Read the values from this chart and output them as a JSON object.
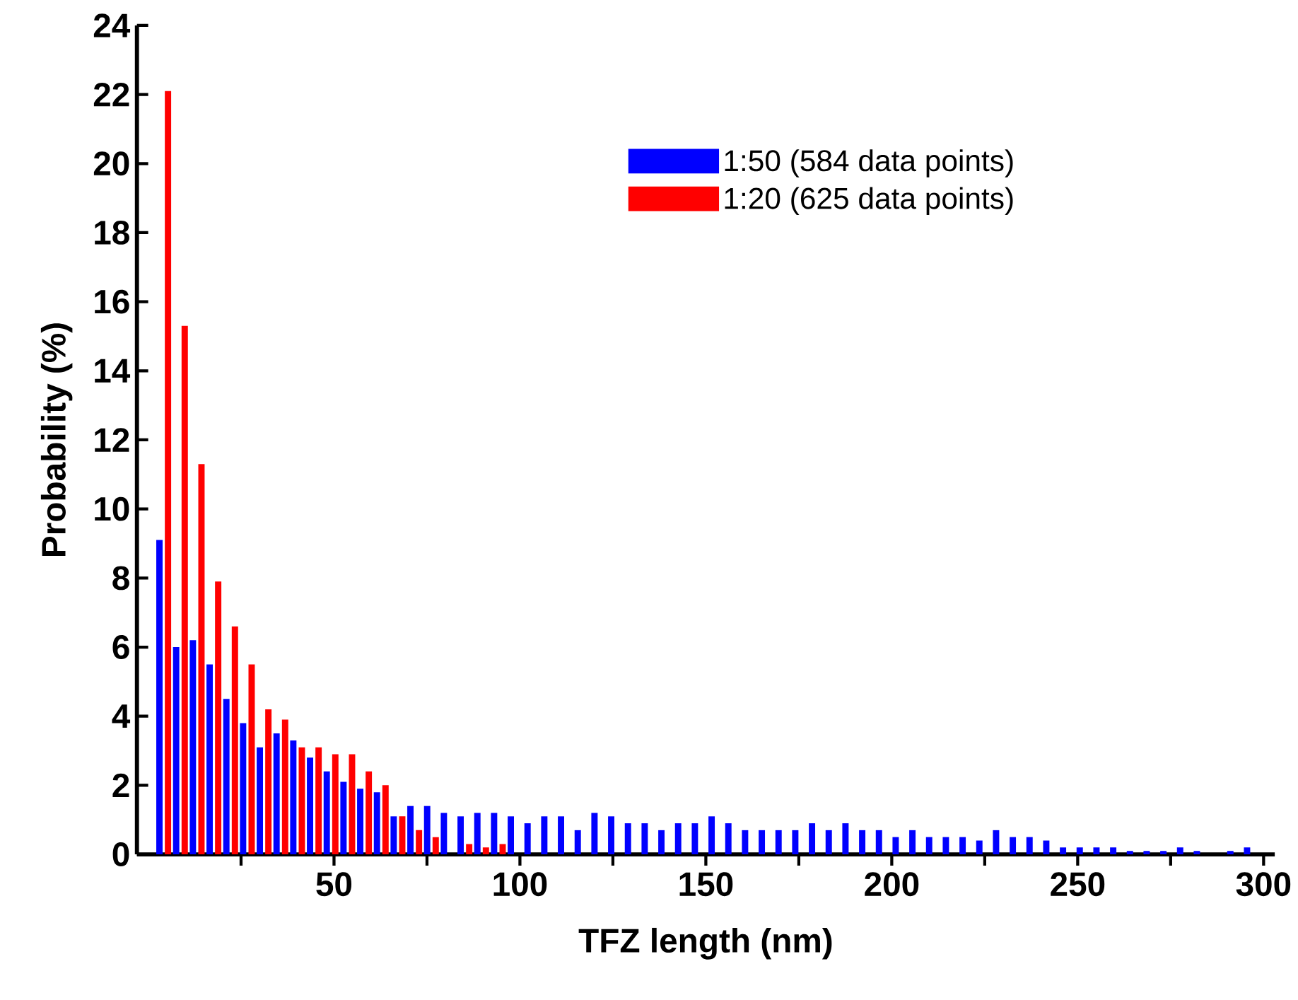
{
  "chart_data": {
    "type": "bar",
    "xlabel": "TFZ length (nm)",
    "ylabel": "Probability (%)",
    "xlim": [
      -3,
      303
    ],
    "ylim": [
      0,
      24
    ],
    "xticks": [
      {
        "value": 25,
        "label": null
      },
      50,
      {
        "value": 75,
        "label": null
      },
      100,
      {
        "value": 125,
        "label": null
      },
      150,
      {
        "value": 175,
        "label": null
      },
      200,
      {
        "value": 225,
        "label": null
      },
      250,
      {
        "value": 275,
        "label": null
      },
      300
    ],
    "yticks": [
      0,
      2,
      4,
      6,
      8,
      10,
      12,
      14,
      16,
      18,
      20,
      22,
      24
    ],
    "legend": "top right",
    "series": [
      {
        "name": "1:50 (584 data points)",
        "color": "#0000ff",
        "x": [
          4.2,
          8.7,
          13.2,
          17.7,
          22.2,
          26.7,
          31.2,
          35.7,
          40.2,
          44.7,
          49.2,
          53.7,
          58.2,
          62.7,
          67.2,
          71.7,
          76.2,
          80.7,
          85.2,
          89.7,
          94.2,
          98.7,
          103.2,
          107.7,
          112.2,
          116.7,
          121.2,
          125.7,
          130.2,
          134.7,
          139.2,
          143.7,
          148.2,
          152.7,
          157.2,
          161.7,
          166.2,
          170.7,
          175.2,
          179.7,
          184.2,
          188.7,
          193.2,
          197.7,
          202.2,
          206.7,
          211.2,
          215.7,
          220.2,
          224.7,
          229.2,
          233.7,
          238.2,
          242.7,
          247.2,
          251.7,
          256.2,
          260.7,
          265.2,
          269.7,
          274.2,
          278.7,
          283.2,
          287.7,
          292.2,
          296.7
        ],
        "values": [
          9.1,
          6.0,
          6.2,
          5.5,
          4.5,
          3.8,
          3.1,
          3.5,
          3.3,
          2.8,
          2.4,
          2.1,
          1.9,
          1.8,
          1.1,
          1.4,
          1.4,
          1.2,
          1.1,
          1.2,
          1.2,
          1.1,
          0.9,
          1.1,
          1.1,
          0.7,
          1.2,
          1.1,
          0.9,
          0.9,
          0.7,
          0.9,
          0.9,
          1.1,
          0.9,
          0.7,
          0.7,
          0.7,
          0.7,
          0.9,
          0.7,
          0.9,
          0.7,
          0.7,
          0.5,
          0.7,
          0.5,
          0.5,
          0.5,
          0.4,
          0.7,
          0.5,
          0.5,
          0.4,
          0.2,
          0.2,
          0.2,
          0.2,
          0.1,
          0.1,
          0.1,
          0.2,
          0.1,
          0,
          0.1,
          0.2
        ]
      },
      {
        "name": "1:20 (625 data points)",
        "color": "#ff0000",
        "x": [
          4.2,
          8.7,
          13.2,
          17.7,
          22.2,
          26.7,
          31.2,
          35.7,
          40.2,
          44.7,
          49.2,
          53.7,
          58.2,
          62.7,
          67.2,
          71.7,
          76.2,
          80.7,
          85.2,
          89.7,
          94.2
        ],
        "values": [
          22.1,
          15.3,
          11.3,
          7.9,
          6.6,
          5.5,
          4.2,
          3.9,
          3.1,
          3.1,
          2.9,
          2.9,
          2.4,
          2.0,
          1.1,
          0.7,
          0.5,
          0,
          0.3,
          0.2,
          0.3
        ]
      }
    ]
  }
}
